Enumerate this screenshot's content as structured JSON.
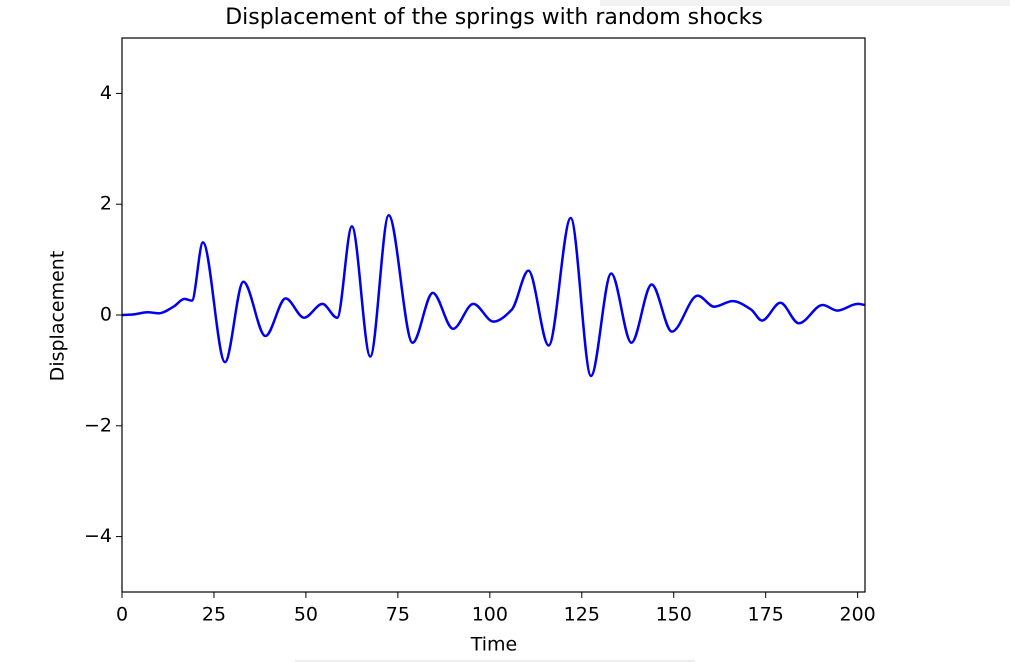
{
  "chart_data": {
    "type": "line",
    "title": "Displacement of the springs with random shocks",
    "x_label": "Time",
    "y_label": "Displacement",
    "x": [
      0,
      3,
      7,
      10,
      14,
      17,
      19,
      22,
      28,
      33,
      39,
      44.5,
      49.5,
      54.5,
      58.5,
      62.5,
      67.5,
      72.5,
      79,
      84.5,
      90,
      95.5,
      101,
      106,
      110.5,
      116,
      122,
      127.5,
      133,
      138.5,
      144,
      149.5,
      156.5,
      161,
      166,
      171,
      174,
      179,
      184,
      190.5,
      194.5,
      200,
      202
    ],
    "series": [
      {
        "name": "Displacement",
        "color": "#0000ee",
        "values": [
          0,
          0.01,
          0.05,
          0.03,
          0.15,
          0.29,
          0.26,
          1.31,
          -0.85,
          0.6,
          -0.38,
          0.3,
          -0.05,
          0.2,
          -0.05,
          1.6,
          -0.75,
          1.8,
          -0.5,
          0.4,
          -0.25,
          0.2,
          -0.12,
          0.1,
          0.8,
          -0.55,
          1.75,
          -1.1,
          0.75,
          -0.5,
          0.55,
          -0.3,
          0.35,
          0.15,
          0.25,
          0.1,
          -0.1,
          0.22,
          -0.15,
          0.18,
          0.08,
          0.2,
          0.18
        ]
      }
    ],
    "xlim": [
      0,
      202
    ],
    "xticks": [
      0,
      25,
      50,
      75,
      100,
      125,
      150,
      175,
      200
    ],
    "ylim": [
      -5,
      5
    ],
    "yticks": [
      {
        "value": -4,
        "label": "−4"
      },
      {
        "value": -2,
        "label": "−2"
      },
      0,
      2,
      4
    ]
  }
}
